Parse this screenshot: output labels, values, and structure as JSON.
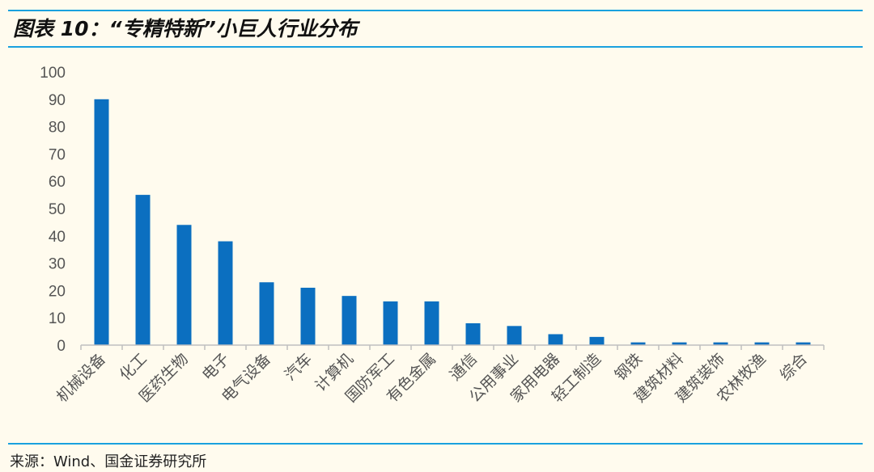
{
  "title": "图表 10：“专精特新”小巨人行业分布",
  "source": "来源：Wind、国金证券研究所",
  "colors": {
    "bar": "#0b6fc0",
    "rule": "#1aa1de",
    "axis": "#bfbfbf",
    "background": "#fffbee"
  },
  "chart_data": {
    "type": "bar",
    "title": "",
    "xlabel": "",
    "ylabel": "",
    "ylim": [
      0,
      100
    ],
    "yticks": [
      0,
      10,
      20,
      30,
      40,
      50,
      60,
      70,
      80,
      90,
      100
    ],
    "grid": false,
    "categories": [
      "机械设备",
      "化工",
      "医药生物",
      "电子",
      "电气设备",
      "汽车",
      "计算机",
      "国防军工",
      "有色金属",
      "通信",
      "公用事业",
      "家用电器",
      "轻工制造",
      "钢铁",
      "建筑材料",
      "建筑装饰",
      "农林牧渔",
      "综合"
    ],
    "values": [
      90,
      55,
      44,
      38,
      23,
      21,
      18,
      16,
      16,
      8,
      7,
      4,
      3,
      1,
      1,
      1,
      1,
      1
    ]
  }
}
